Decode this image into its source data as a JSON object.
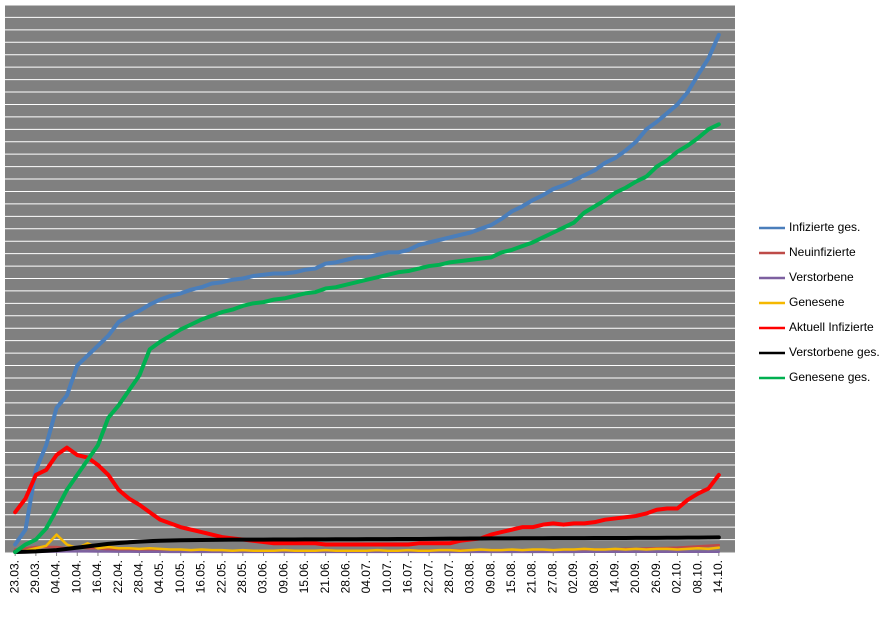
{
  "chart_data": {
    "type": "line",
    "categories": [
      "23.03.",
      null,
      "29.03.",
      null,
      "04.04.",
      null,
      "10.04.",
      null,
      "16.04.",
      null,
      "22.04.",
      null,
      "28.04.",
      null,
      "04.05.",
      null,
      "10.05.",
      null,
      "16.05.",
      null,
      "22.05.",
      null,
      "28.05.",
      null,
      "03.06.",
      null,
      "09.06.",
      null,
      "15.06.",
      null,
      "21.06.",
      null,
      "28.06.",
      null,
      "04.07.",
      null,
      "10.07.",
      null,
      "16.07.",
      null,
      "22.07.",
      null,
      "28.07.",
      null,
      "03.08.",
      null,
      "09.08.",
      null,
      "15.08.",
      null,
      "21.08.",
      null,
      "27.08.",
      null,
      "02.09.",
      null,
      "08.09.",
      null,
      "14.09.",
      null,
      "20.09.",
      null,
      "26.09.",
      null,
      "02.10.",
      null,
      "08.10.",
      null,
      "14.10."
    ],
    "series": [
      {
        "name": "Infizierte ges.",
        "color": "#4a7ebb",
        "values": [
          0.6,
          1.8,
          6.6,
          8.6,
          11.6,
          12.6,
          15,
          15.8,
          16.6,
          17.4,
          18.5,
          19,
          19.4,
          19.9,
          20.3,
          20.6,
          20.8,
          21.1,
          21.3,
          21.6,
          21.7,
          21.9,
          22,
          22.2,
          22.3,
          22.4,
          22.4,
          22.5,
          22.7,
          22.8,
          23.2,
          23.3,
          23.5,
          23.7,
          23.7,
          23.9,
          24.1,
          24.1,
          24.3,
          24.7,
          24.9,
          25.1,
          25.3,
          25.5,
          25.7,
          26,
          26.3,
          26.8,
          27.4,
          27.8,
          28.3,
          28.7,
          29.2,
          29.5,
          29.9,
          30.3,
          30.7,
          31.3,
          31.7,
          32.3,
          33,
          34,
          34.6,
          35.3,
          36,
          37,
          38.4,
          39.7,
          41.6
        ]
      },
      {
        "name": "Neuinfizierte",
        "color": "#be4b48",
        "values": [
          0.2,
          0.3,
          0.4,
          0.4,
          0.4,
          0.3,
          0.4,
          0.3,
          0.3,
          0.2,
          0.2,
          0.2,
          0.15,
          0.15,
          0.1,
          0.1,
          0.1,
          0.1,
          0.1,
          0.08,
          0.08,
          0.06,
          0.06,
          0.05,
          0.05,
          0.05,
          0.05,
          0.05,
          0.05,
          0.05,
          0.05,
          0.05,
          0.06,
          0.06,
          0.06,
          0.08,
          0.08,
          0.1,
          0.1,
          0.12,
          0.12,
          0.15,
          0.15,
          0.15,
          0.15,
          0.15,
          0.15,
          0.15,
          0.15,
          0.15,
          0.15,
          0.15,
          0.15,
          0.18,
          0.18,
          0.2,
          0.2,
          0.2,
          0.22,
          0.25,
          0.25,
          0.28,
          0.3,
          0.32,
          0.35,
          0.4,
          0.45,
          0.5,
          0.55
        ]
      },
      {
        "name": "Verstorbene",
        "color": "#7d60a0",
        "values": [
          0,
          0.01,
          0.02,
          0.03,
          0.04,
          0.05,
          0.05,
          0.05,
          0.04,
          0.04,
          0.03,
          0.03,
          0.02,
          0.02,
          0.02,
          0.01,
          0.01,
          0.01,
          0.01,
          0.01,
          0.01,
          0.01,
          0.01,
          0.01,
          0.01,
          0.01,
          0.01,
          0.01,
          0.01,
          0.01,
          0.01,
          0.01,
          0.01,
          0.01,
          0.01,
          0.01,
          0.01,
          0.01,
          0.01,
          0.01,
          0.01,
          0.01,
          0.01,
          0.01,
          0.01,
          0.01,
          0.01,
          0.01,
          0.01,
          0.01,
          0.01,
          0.01,
          0.01,
          0.01,
          0.01,
          0.02,
          0.02,
          0.02,
          0.02,
          0.02,
          0.02,
          0.02,
          0.02,
          0.02,
          0.02,
          0.02,
          0.02,
          0.02,
          0.02
        ]
      },
      {
        "name": "Genesene",
        "color": "#f5b800",
        "values": [
          0,
          0.1,
          0.3,
          0.5,
          1.4,
          0.6,
          0.3,
          0.7,
          0.3,
          0.4,
          0.3,
          0.3,
          0.25,
          0.3,
          0.25,
          0.2,
          0.2,
          0.15,
          0.2,
          0.15,
          0.15,
          0.1,
          0.15,
          0.1,
          0.1,
          0.1,
          0.15,
          0.1,
          0.1,
          0.1,
          0.15,
          0.1,
          0.1,
          0.1,
          0.1,
          0.15,
          0.1,
          0.1,
          0.15,
          0.1,
          0.1,
          0.15,
          0.15,
          0.1,
          0.15,
          0.2,
          0.15,
          0.15,
          0.2,
          0.15,
          0.2,
          0.2,
          0.15,
          0.2,
          0.2,
          0.25,
          0.2,
          0.2,
          0.25,
          0.2,
          0.25,
          0.2,
          0.25,
          0.25,
          0.2,
          0.25,
          0.3,
          0.25,
          0.35
        ]
      },
      {
        "name": "Aktuell Infizierte",
        "color": "#ff0000",
        "values": [
          3.2,
          4.3,
          6.2,
          6.6,
          7.8,
          8.4,
          7.8,
          7.6,
          7,
          6.2,
          5,
          4.3,
          3.8,
          3.2,
          2.6,
          2.3,
          2,
          1.8,
          1.6,
          1.4,
          1.2,
          1.1,
          1,
          0.9,
          0.8,
          0.7,
          0.7,
          0.7,
          0.7,
          0.7,
          0.6,
          0.6,
          0.6,
          0.6,
          0.6,
          0.6,
          0.6,
          0.6,
          0.6,
          0.7,
          0.7,
          0.7,
          0.7,
          0.9,
          1,
          1.1,
          1.4,
          1.6,
          1.8,
          2,
          2,
          2.2,
          2.3,
          2.2,
          2.3,
          2.3,
          2.4,
          2.6,
          2.7,
          2.8,
          2.9,
          3.1,
          3.4,
          3.5,
          3.5,
          4.2,
          4.7,
          5.1,
          6.2
        ]
      },
      {
        "name": "Verstorbene ges.",
        "color": "#000000",
        "values": [
          0,
          0.02,
          0.05,
          0.1,
          0.15,
          0.25,
          0.35,
          0.45,
          0.55,
          0.65,
          0.72,
          0.78,
          0.83,
          0.87,
          0.9,
          0.93,
          0.95,
          0.96,
          0.97,
          0.98,
          0.99,
          1,
          1,
          1,
          1,
          1.01,
          1.01,
          1.01,
          1.02,
          1.02,
          1.02,
          1.03,
          1.03,
          1.03,
          1.04,
          1.04,
          1.04,
          1.05,
          1.05,
          1.05,
          1.06,
          1.07,
          1.08,
          1.08,
          1.09,
          1.09,
          1.1,
          1.1,
          1.1,
          1.11,
          1.11,
          1.11,
          1.12,
          1.12,
          1.12,
          1.12,
          1.13,
          1.13,
          1.13,
          1.13,
          1.14,
          1.14,
          1.14,
          1.15,
          1.15,
          1.16,
          1.16,
          1.17,
          1.18
        ]
      },
      {
        "name": "Genesene ges.",
        "color": "#00b050",
        "values": [
          0,
          0.6,
          1,
          1.9,
          3.4,
          5,
          6.2,
          7.4,
          8.6,
          10.8,
          11.8,
          13,
          14.2,
          16.3,
          16.9,
          17.4,
          17.9,
          18.3,
          18.7,
          19,
          19.3,
          19.5,
          19.8,
          20,
          20.1,
          20.3,
          20.4,
          20.6,
          20.8,
          20.9,
          21.2,
          21.3,
          21.5,
          21.7,
          21.9,
          22.1,
          22.3,
          22.5,
          22.6,
          22.8,
          23,
          23.1,
          23.3,
          23.4,
          23.5,
          23.6,
          23.7,
          24.1,
          24.3,
          24.6,
          24.9,
          25.3,
          25.7,
          26.1,
          26.5,
          27.3,
          27.8,
          28.3,
          28.9,
          29.3,
          29.8,
          30.2,
          31,
          31.5,
          32.2,
          32.7,
          33.3,
          34,
          34.4
        ]
      }
    ],
    "ylim": [
      0,
      44
    ],
    "yticks": [
      0,
      1,
      2,
      3,
      4,
      5,
      6,
      7,
      8,
      9,
      10,
      11,
      12,
      13,
      14,
      15,
      16,
      17,
      18,
      19,
      20,
      21,
      22,
      23,
      24,
      25,
      26,
      27,
      28,
      29,
      30,
      31,
      32,
      33,
      34,
      35,
      36,
      37,
      38,
      39,
      40,
      41,
      42,
      43,
      44
    ],
    "grid": true,
    "plot_background": "#808080",
    "grid_color": "#ffffff",
    "legend": "right"
  }
}
